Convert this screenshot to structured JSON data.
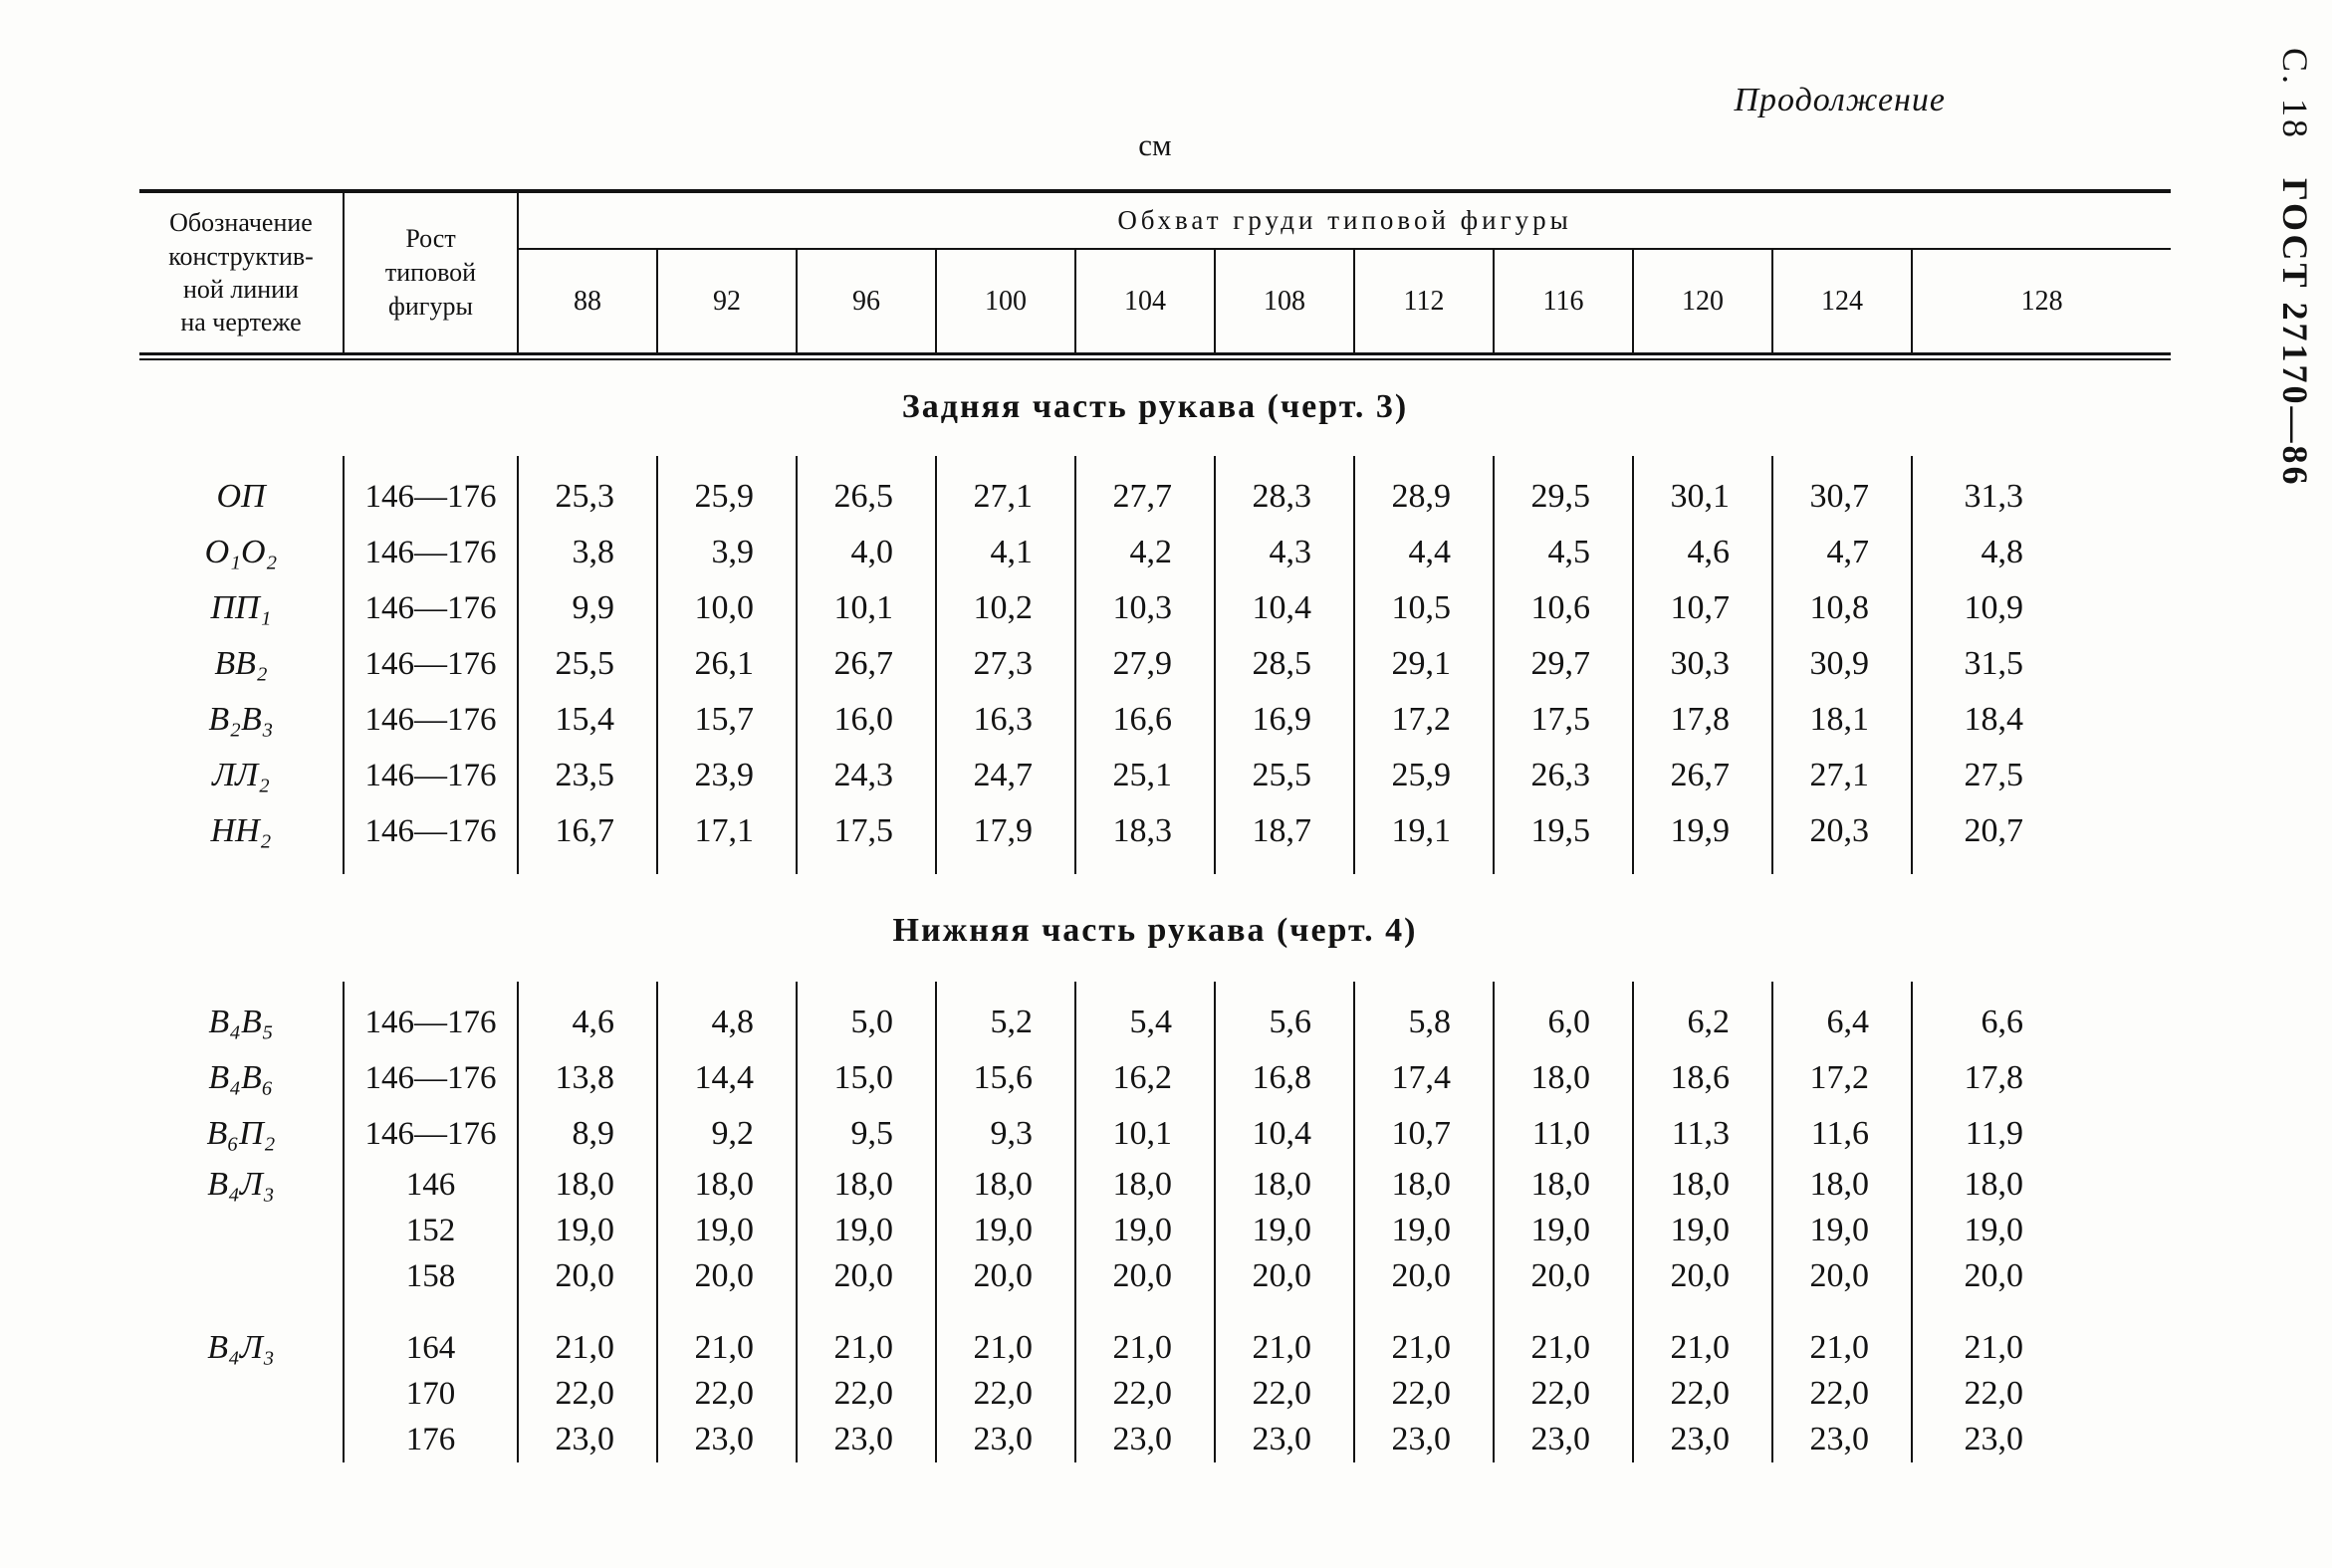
{
  "page": {
    "continuation": "Продолжение",
    "side_page": "С. 18",
    "side_gost": "ГОСТ 27170—86",
    "unit": "см"
  },
  "table": {
    "header": {
      "col1_lines": [
        "Обозначение",
        "конструктив-",
        "ной линии",
        "на чертеже"
      ],
      "col2_lines": [
        "Рост",
        "типовой",
        "фигуры"
      ],
      "group_title": "Обхват груди типовой фигуры",
      "sizes": [
        "88",
        "92",
        "96",
        "100",
        "104",
        "108",
        "112",
        "116",
        "120",
        "124",
        "128"
      ]
    },
    "sections": [
      {
        "title": "Задняя часть рукава (черт. 3)",
        "rows": [
          {
            "designation": "ОП",
            "rost": "146—176",
            "values": [
              "25,3",
              "25,9",
              "26,5",
              "27,1",
              "27,7",
              "28,3",
              "28,9",
              "29,5",
              "30,1",
              "30,7",
              "31,3"
            ]
          },
          {
            "designation": "О₁О₂",
            "rost": "146—176",
            "values": [
              "3,8",
              "3,9",
              "4,0",
              "4,1",
              "4,2",
              "4,3",
              "4,4",
              "4,5",
              "4,6",
              "4,7",
              "4,8"
            ]
          },
          {
            "designation": "ПП₁",
            "rost": "146—176",
            "values": [
              "9,9",
              "10,0",
              "10,1",
              "10,2",
              "10,3",
              "10,4",
              "10,5",
              "10,6",
              "10,7",
              "10,8",
              "10,9"
            ]
          },
          {
            "designation": "ВВ₂",
            "rost": "146—176",
            "values": [
              "25,5",
              "26,1",
              "26,7",
              "27,3",
              "27,9",
              "28,5",
              "29,1",
              "29,7",
              "30,3",
              "30,9",
              "31,5"
            ]
          },
          {
            "designation": "В₂В₃",
            "rost": "146—176",
            "values": [
              "15,4",
              "15,7",
              "16,0",
              "16,3",
              "16,6",
              "16,9",
              "17,2",
              "17,5",
              "17,8",
              "18,1",
              "18,4"
            ]
          },
          {
            "designation": "ЛЛ₂",
            "rost": "146—176",
            "values": [
              "23,5",
              "23,9",
              "24,3",
              "24,7",
              "25,1",
              "25,5",
              "25,9",
              "26,3",
              "26,7",
              "27,1",
              "27,5"
            ]
          },
          {
            "designation": "НН₂",
            "rost": "146—176",
            "values": [
              "16,7",
              "17,1",
              "17,5",
              "17,9",
              "18,3",
              "18,7",
              "19,1",
              "19,5",
              "19,9",
              "20,3",
              "20,7"
            ]
          }
        ]
      },
      {
        "title": "Нижняя часть рукава (черт. 4)",
        "rows": [
          {
            "designation": "В₄В₅",
            "rost": "146—176",
            "values": [
              "4,6",
              "4,8",
              "5,0",
              "5,2",
              "5,4",
              "5,6",
              "5,8",
              "6,0",
              "6,2",
              "6,4",
              "6,6"
            ]
          },
          {
            "designation": "В₄В₆",
            "rost": "146—176",
            "values": [
              "13,8",
              "14,4",
              "15,0",
              "15,6",
              "16,2",
              "16,8",
              "17,4",
              "18,0",
              "18,6",
              "17,2",
              "17,8"
            ]
          },
          {
            "designation": "В₆П₂",
            "rost": "146—176",
            "values": [
              "8,9",
              "9,2",
              "9,5",
              "9,3",
              "10,1",
              "10,4",
              "10,7",
              "11,0",
              "11,3",
              "11,6",
              "11,9"
            ]
          },
          {
            "designation": "В₄Л₃",
            "group": [
              {
                "rost": "146",
                "values": [
                  "18,0",
                  "18,0",
                  "18,0",
                  "18,0",
                  "18,0",
                  "18,0",
                  "18,0",
                  "18,0",
                  "18,0",
                  "18,0",
                  "18,0"
                ]
              },
              {
                "rost": "152",
                "values": [
                  "19,0",
                  "19,0",
                  "19,0",
                  "19,0",
                  "19,0",
                  "19,0",
                  "19,0",
                  "19,0",
                  "19,0",
                  "19,0",
                  "19,0"
                ]
              },
              {
                "rost": "158",
                "values": [
                  "20,0",
                  "20,0",
                  "20,0",
                  "20,0",
                  "20,0",
                  "20,0",
                  "20,0",
                  "20,0",
                  "20,0",
                  "20,0",
                  "20,0"
                ]
              }
            ]
          },
          {
            "designation": "В₄Л₃",
            "gap_before": true,
            "group": [
              {
                "rost": "164",
                "values": [
                  "21,0",
                  "21,0",
                  "21,0",
                  "21,0",
                  "21,0",
                  "21,0",
                  "21,0",
                  "21,0",
                  "21,0",
                  "21,0",
                  "21,0"
                ]
              },
              {
                "rost": "170",
                "values": [
                  "22,0",
                  "22,0",
                  "22,0",
                  "22,0",
                  "22,0",
                  "22,0",
                  "22,0",
                  "22,0",
                  "22,0",
                  "22,0",
                  "22,0"
                ]
              },
              {
                "rost": "176",
                "values": [
                  "23,0",
                  "23,0",
                  "23,0",
                  "23,0",
                  "23,0",
                  "23,0",
                  "23,0",
                  "23,0",
                  "23,0",
                  "23,0",
                  "23,0"
                ]
              }
            ]
          }
        ]
      }
    ]
  }
}
